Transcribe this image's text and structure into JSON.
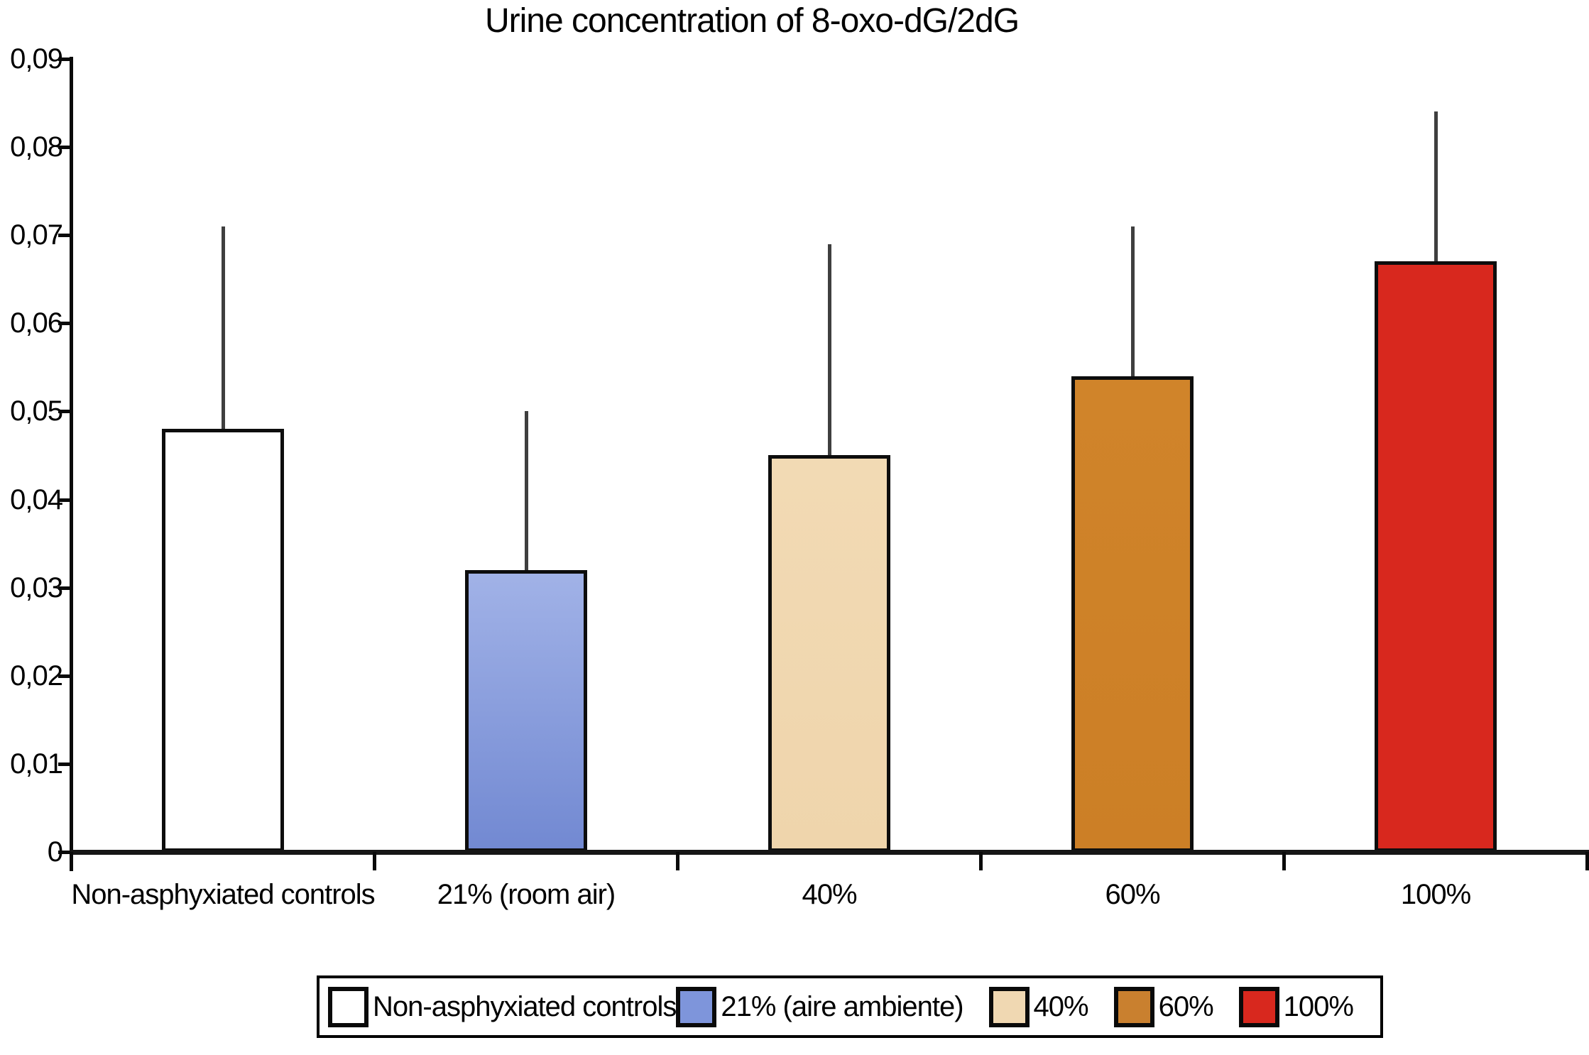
{
  "title": "Urine concentration of 8-oxo-dG/2dG",
  "chart_data": {
    "type": "bar",
    "title": "Urine concentration of 8-oxo-dG/2dG",
    "categories": [
      "Non-asphyxiated controls",
      "21% (room air)",
      "40%",
      "60%",
      "100%"
    ],
    "values": [
      0.048,
      0.032,
      0.045,
      0.054,
      0.067
    ],
    "error_bar_tops": [
      0.071,
      0.05,
      0.069,
      0.071,
      0.084
    ],
    "errors_plus": [
      0.023,
      0.018,
      0.024,
      0.017,
      0.017
    ],
    "bar_colors_top": [
      "#FFFFFF",
      "#A1B2E7",
      "#F2DAB4",
      "#D0842A",
      "#D8281E"
    ],
    "bar_colors_bottom": [
      "#FFFFFF",
      "#7289D2",
      "#EFD5AC",
      "#CC7F26",
      "#D8281E"
    ],
    "bar_outline": "#0D0D0D",
    "error_bar_color": "#3F3F3F",
    "ylim": [
      0,
      0.09
    ],
    "y_tick_labels": [
      "0",
      "0,01",
      "0,02",
      "0,03",
      "0,04",
      "0,05",
      "0,06",
      "0,07",
      "0,08",
      "0,09"
    ],
    "decimal_separator": ",",
    "xlabel": "",
    "ylabel": "",
    "grid": false,
    "legend_position": "bottom-center"
  },
  "legend": {
    "items": [
      {
        "label": "Non-asphyxiated controls",
        "color": "#FFFFFF"
      },
      {
        "label": "21% (aire ambiente)",
        "color": "#7E95DB"
      },
      {
        "label": "40%",
        "color": "#F0D8B2"
      },
      {
        "label": "60%",
        "color": "#C9802F"
      },
      {
        "label": "100%",
        "color": "#D8281E"
      }
    ]
  }
}
